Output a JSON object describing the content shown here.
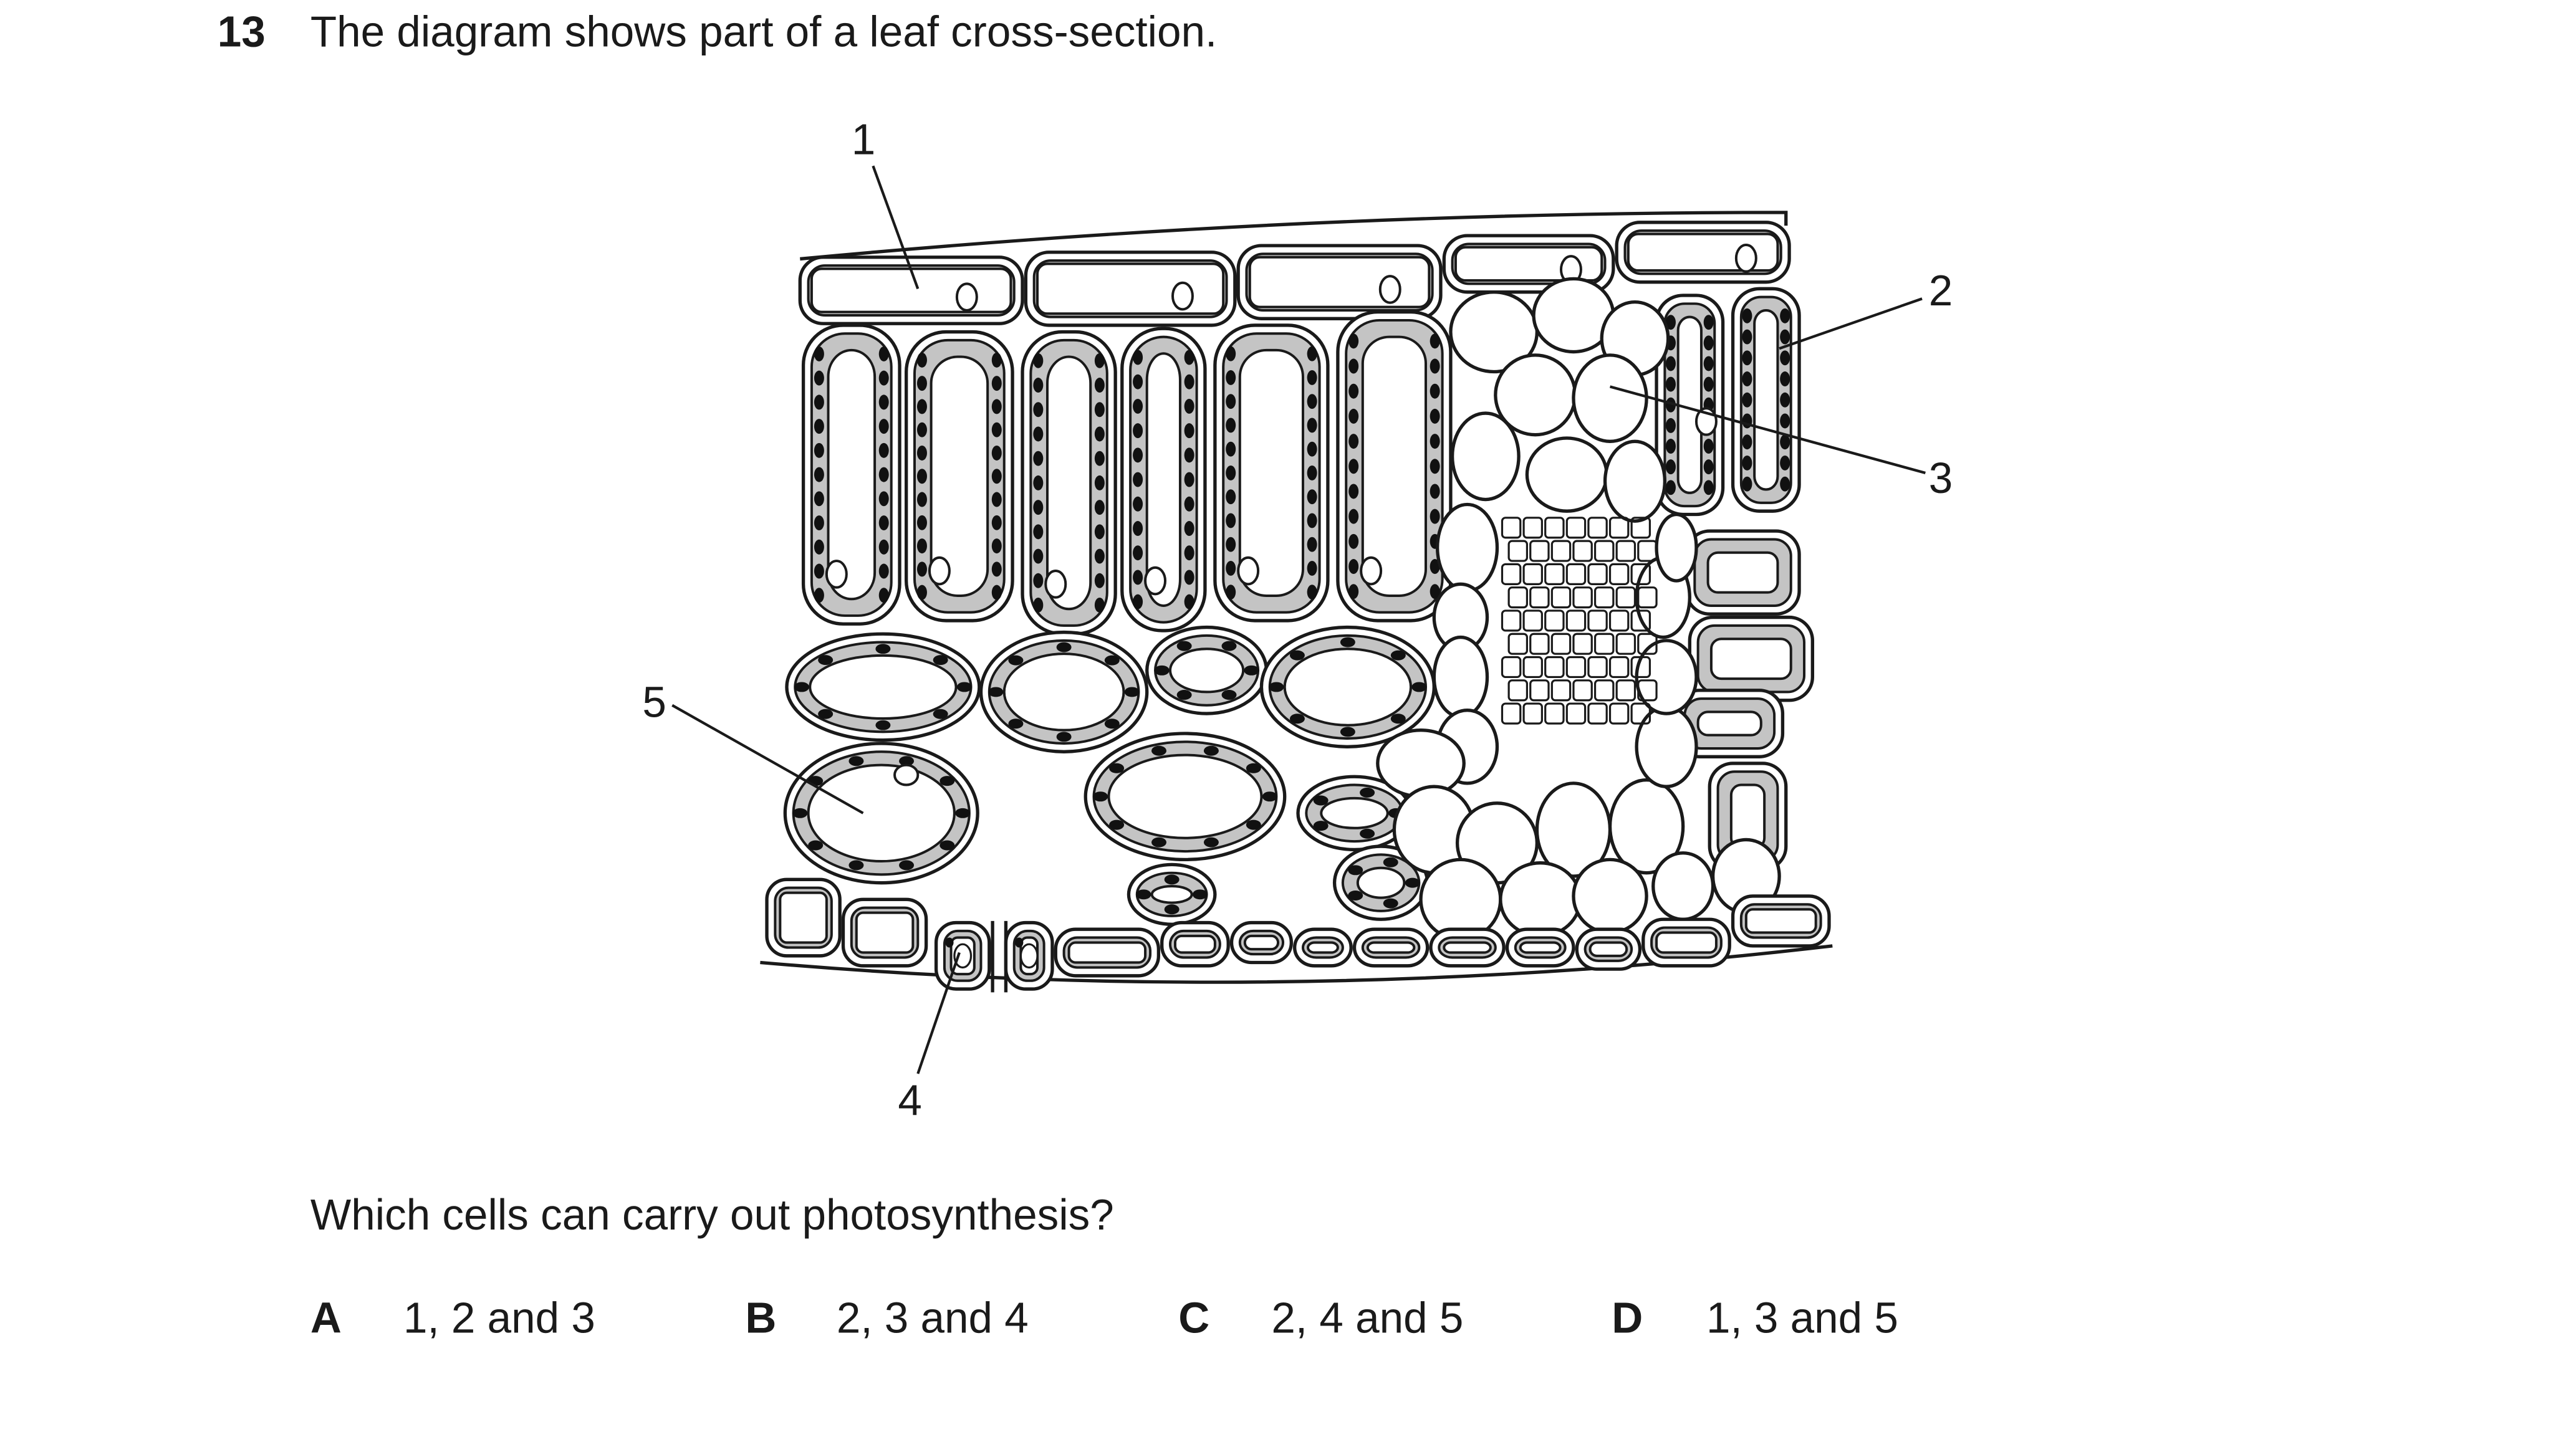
{
  "question": {
    "number": "13",
    "stem": "The diagram shows part of a leaf cross-section.",
    "prompt": "Which cells can carry out photosynthesis?"
  },
  "diagram": {
    "labels": [
      "1",
      "2",
      "3",
      "4",
      "5"
    ]
  },
  "options": [
    {
      "letter": "A",
      "text": "1, 2 and 3"
    },
    {
      "letter": "B",
      "text": "2, 3 and 4"
    },
    {
      "letter": "C",
      "text": "2, 4 and 5"
    },
    {
      "letter": "D",
      "text": "1, 3 and 5"
    }
  ],
  "colors": {
    "ink": "#1a1a1a",
    "cytoplasm": "#c4c4c4",
    "chloroplast": "#111111"
  }
}
